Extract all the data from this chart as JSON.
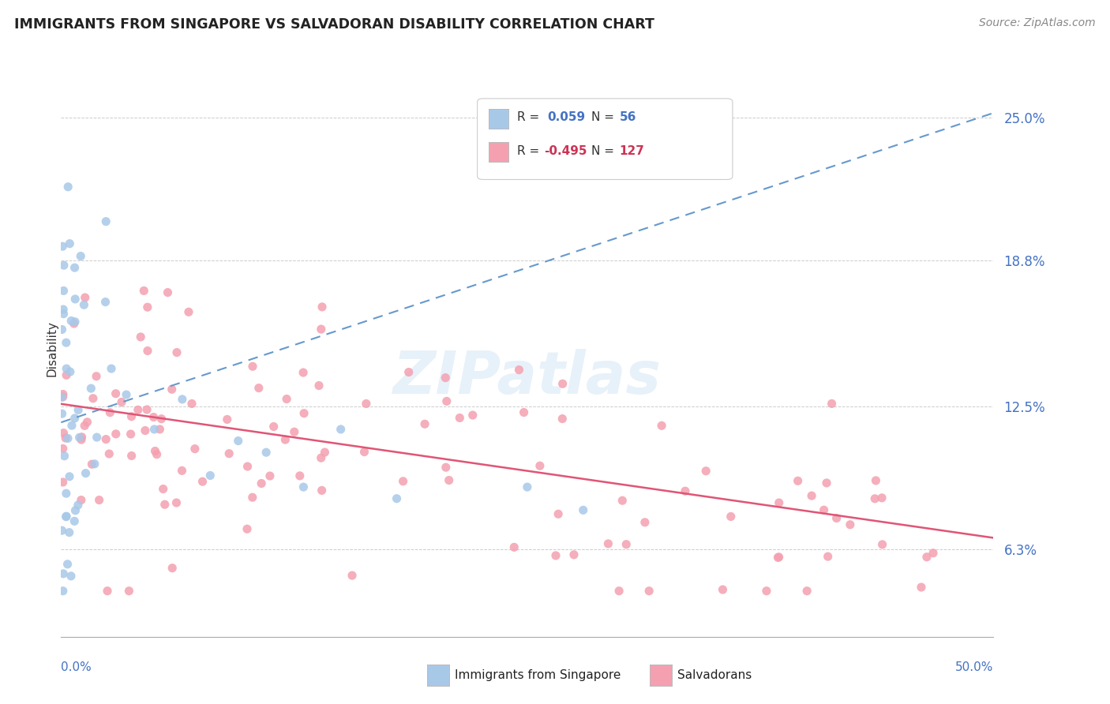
{
  "title": "IMMIGRANTS FROM SINGAPORE VS SALVADORAN DISABILITY CORRELATION CHART",
  "source": "Source: ZipAtlas.com",
  "ylabel": "Disability",
  "y_ticks": [
    6.3,
    12.5,
    18.8,
    25.0
  ],
  "y_tick_labels": [
    "6.3%",
    "12.5%",
    "18.8%",
    "25.0%"
  ],
  "xmin": 0.0,
  "xmax": 50.0,
  "ymin": 2.5,
  "ymax": 27.5,
  "color_singapore": "#A8C8E8",
  "color_salvadoran": "#F4A0B0",
  "color_line_singapore": "#6699CC",
  "color_line_salvadoran": "#E05575",
  "watermark": "ZIPatlas",
  "sg_line_x0": 0.0,
  "sg_line_y0": 11.8,
  "sg_line_x1": 50.0,
  "sg_line_y1": 25.2,
  "sal_line_x0": 0.0,
  "sal_line_y0": 12.6,
  "sal_line_x1": 50.0,
  "sal_line_y1": 6.8
}
